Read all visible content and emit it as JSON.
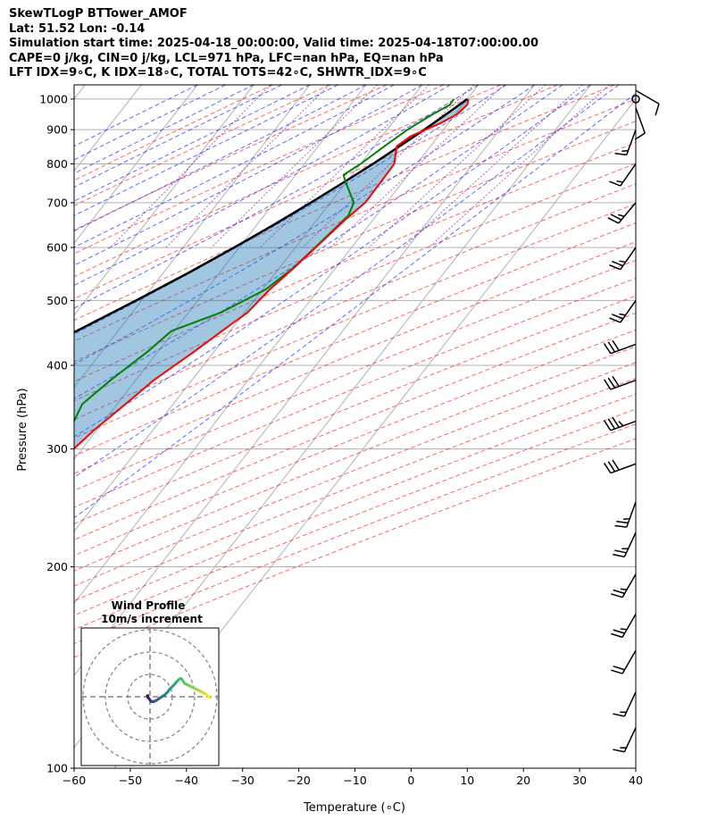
{
  "header": {
    "line1": "SkewTLogP BTTower_AMOF",
    "line2": "Lat: 51.52   Lon: -0.14",
    "line3": "Simulation start time: 2025-04-18_00:00:00, Valid time: 2025-04-18T07:00:00.00",
    "line4": "CAPE=0 j/kg, CIN=0 j/kg, LCL=971 hPa, LFC=nan hPa, EQ=nan hPa",
    "line5": "LFT IDX=9∘C, K IDX=18∘C, TOTAL TOTS=42∘C, SHWTR_IDX=9∘C"
  },
  "chart_data": {
    "type": "line",
    "subtype": "skew-T log-P diagram",
    "xlabel": "Temperature (∘C)",
    "ylabel": "Pressure (hPa)",
    "xlim": [
      -60,
      40
    ],
    "ylim": [
      1050,
      100
    ],
    "y_scale": "log",
    "x_ticks": [
      -60,
      -50,
      -40,
      -30,
      -20,
      -10,
      0,
      10,
      20,
      30,
      40
    ],
    "x_tick_labels": [
      "−60",
      "−50",
      "−40",
      "−30",
      "−20",
      "−10",
      "0",
      "10",
      "20",
      "30",
      "40"
    ],
    "y_ticks": [
      100,
      200,
      300,
      400,
      500,
      600,
      700,
      800,
      900,
      1000
    ],
    "y_tick_labels": [
      "100",
      "200",
      "300",
      "400",
      "500",
      "600",
      "700",
      "800",
      "900",
      "1000"
    ],
    "grid": true,
    "series": [
      {
        "key": "temperature",
        "color": "#ff0000",
        "points": [
          [
            1000,
            10.2
          ],
          [
            980,
            10.8
          ],
          [
            950,
            10.3
          ],
          [
            920,
            8.6
          ],
          [
            900,
            6.8
          ],
          [
            880,
            5.1
          ],
          [
            850,
            4.0
          ],
          [
            800,
            6.0
          ],
          [
            760,
            6.1
          ],
          [
            720,
            6.2
          ],
          [
            700,
            6.2
          ],
          [
            660,
            5.0
          ],
          [
            600,
            3.6
          ],
          [
            560,
            2.6
          ],
          [
            520,
            1.3
          ],
          [
            480,
            0.5
          ],
          [
            450,
            -1.5
          ],
          [
            420,
            -3.5
          ],
          [
            380,
            -6.8
          ],
          [
            350,
            -8.5
          ],
          [
            320,
            -10.5
          ],
          [
            300,
            -11.5
          ],
          [
            280,
            -12.2
          ],
          [
            260,
            -12.0
          ],
          [
            240,
            -10.3
          ],
          [
            230,
            -8.0
          ],
          [
            220,
            -3.5
          ],
          [
            200,
            -0.5
          ],
          [
            185,
            0.6
          ],
          [
            175,
            1.3
          ],
          [
            160,
            -0.3
          ],
          [
            140,
            -3.3
          ],
          [
            120,
            -6.3
          ],
          [
            100,
            -8.2
          ]
        ]
      },
      {
        "key": "dewpoint",
        "color": "#008000",
        "points": [
          [
            1000,
            7.6
          ],
          [
            980,
            7.7
          ],
          [
            950,
            6.0
          ],
          [
            900,
            3.6
          ],
          [
            850,
            1.8
          ],
          [
            800,
            0.0
          ],
          [
            770,
            -1.5
          ],
          [
            740,
            0.8
          ],
          [
            700,
            4.2
          ],
          [
            670,
            5.0
          ],
          [
            600,
            3.5
          ],
          [
            560,
            2.5
          ],
          [
            520,
            0.6
          ],
          [
            480,
            -4.2
          ],
          [
            450,
            -10.5
          ],
          [
            420,
            -11.8
          ],
          [
            380,
            -14.5
          ],
          [
            350,
            -16.2
          ],
          [
            330,
            -15.3
          ],
          [
            300,
            -16.0
          ],
          [
            280,
            -17.5
          ],
          [
            250,
            -19.2
          ],
          [
            230,
            -22.0
          ],
          [
            220,
            -24.5
          ],
          [
            210,
            -27.5
          ],
          [
            200,
            -30.0
          ],
          [
            185,
            -32.5
          ],
          [
            160,
            -34.0
          ],
          [
            140,
            -36.0
          ],
          [
            120,
            -40.5
          ],
          [
            100,
            -44.0
          ]
        ]
      },
      {
        "key": "parcel",
        "color": "#000000",
        "points": [
          [
            1000,
            10.0
          ],
          [
            971,
            9.1
          ],
          [
            900,
            6.6
          ],
          [
            850,
            4.5
          ],
          [
            800,
            2.2
          ],
          [
            750,
            -0.5
          ],
          [
            700,
            -3.5
          ],
          [
            650,
            -6.9
          ],
          [
            600,
            -10.9
          ],
          [
            550,
            -15.5
          ],
          [
            500,
            -21.0
          ],
          [
            450,
            -27.4
          ],
          [
            400,
            -34.9
          ],
          [
            350,
            -43.7
          ],
          [
            300,
            -54.1
          ],
          [
            250,
            -66.7
          ],
          [
            200,
            -82.0
          ],
          [
            150,
            -101.0
          ],
          [
            100,
            -125.0
          ]
        ]
      }
    ],
    "wind_barbs": [
      {
        "p": 1030,
        "speed_kt": 10,
        "dir_deg": 120
      },
      {
        "p": 1000,
        "speed_kt": 0,
        "dir_deg": 0
      },
      {
        "p": 970,
        "speed_kt": 10,
        "dir_deg": 160
      },
      {
        "p": 900,
        "speed_kt": 15,
        "dir_deg": 200
      },
      {
        "p": 800,
        "speed_kt": 15,
        "dir_deg": 215
      },
      {
        "p": 700,
        "speed_kt": 25,
        "dir_deg": 220
      },
      {
        "p": 600,
        "speed_kt": 25,
        "dir_deg": 215
      },
      {
        "p": 500,
        "speed_kt": 25,
        "dir_deg": 215
      },
      {
        "p": 430,
        "speed_kt": 30,
        "dir_deg": 250
      },
      {
        "p": 380,
        "speed_kt": 30,
        "dir_deg": 250
      },
      {
        "p": 330,
        "speed_kt": 35,
        "dir_deg": 250
      },
      {
        "p": 285,
        "speed_kt": 30,
        "dir_deg": 250
      },
      {
        "p": 250,
        "speed_kt": 25,
        "dir_deg": 200
      },
      {
        "p": 225,
        "speed_kt": 25,
        "dir_deg": 205
      },
      {
        "p": 195,
        "speed_kt": 25,
        "dir_deg": 210
      },
      {
        "p": 170,
        "speed_kt": 25,
        "dir_deg": 210
      },
      {
        "p": 150,
        "speed_kt": 20,
        "dir_deg": 210
      },
      {
        "p": 130,
        "speed_kt": 15,
        "dir_deg": 205
      },
      {
        "p": 115,
        "speed_kt": 15,
        "dir_deg": 205
      }
    ],
    "hodograph": {
      "title": "Wind Profile",
      "subtitle": "10m/s increment",
      "rings_ms": [
        10,
        20,
        30
      ],
      "points": [
        [
          -1.0,
          -0.5
        ],
        [
          -1.2,
          -0.3
        ],
        [
          -1.0,
          0.2
        ],
        [
          -0.8,
          0.4
        ],
        [
          -0.6,
          0.6
        ],
        [
          -0.4,
          0.9
        ],
        [
          -0.2,
          1.2
        ],
        [
          0.0,
          1.5
        ],
        [
          0.4,
          2.0
        ],
        [
          0.8,
          2.2
        ],
        [
          1.2,
          2.1
        ],
        [
          1.6,
          2.2
        ],
        [
          2.0,
          2.0
        ],
        [
          2.5,
          1.8
        ],
        [
          3.0,
          1.5
        ],
        [
          3.8,
          1.0
        ],
        [
          4.5,
          0.5
        ],
        [
          5.0,
          0.2
        ],
        [
          5.5,
          -0.2
        ],
        [
          6.0,
          -0.5
        ],
        [
          6.6,
          -0.8
        ],
        [
          7.2,
          -1.5
        ],
        [
          7.8,
          -2.0
        ],
        [
          8.5,
          -3.0
        ],
        [
          9.2,
          -3.8
        ],
        [
          10.0,
          -4.6
        ],
        [
          10.8,
          -5.4
        ],
        [
          11.5,
          -6.2
        ],
        [
          12.2,
          -7.0
        ],
        [
          12.8,
          -7.6
        ],
        [
          13.3,
          -8.0
        ],
        [
          13.8,
          -8.2
        ],
        [
          14.3,
          -7.8
        ],
        [
          14.8,
          -7.0
        ],
        [
          15.5,
          -6.0
        ],
        [
          16.5,
          -5.5
        ],
        [
          17.5,
          -5.0
        ],
        [
          18.5,
          -4.5
        ],
        [
          19.5,
          -4.0
        ],
        [
          20.5,
          -3.5
        ],
        [
          21.5,
          -3.0
        ],
        [
          22.5,
          -2.5
        ],
        [
          23.5,
          -2.0
        ],
        [
          24.5,
          -1.5
        ],
        [
          25.0,
          -1.2
        ],
        [
          25.5,
          -0.8
        ],
        [
          26.0,
          -0.3
        ],
        [
          26.8,
          0.5
        ]
      ]
    }
  }
}
